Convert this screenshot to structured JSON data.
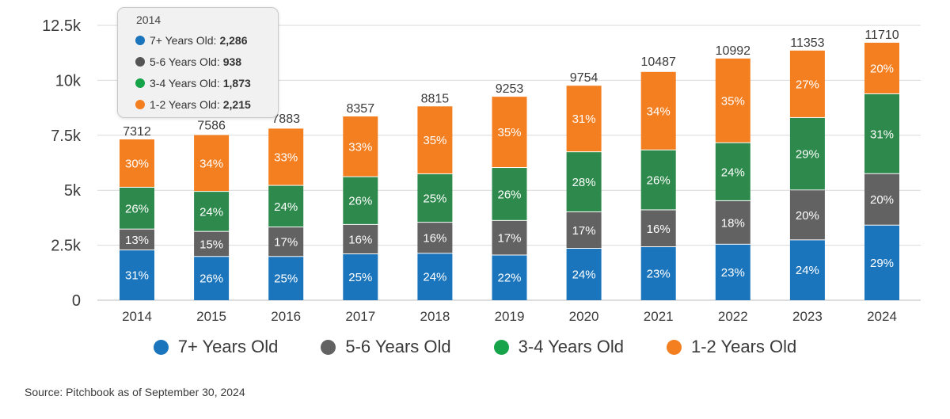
{
  "chart_data": {
    "type": "bar",
    "stacked": true,
    "categories": [
      "2014",
      "2015",
      "2016",
      "2017",
      "2018",
      "2019",
      "2020",
      "2021",
      "2022",
      "2023",
      "2024"
    ],
    "totals": [
      7312,
      7586,
      7883,
      8357,
      8815,
      9253,
      9754,
      10487,
      10992,
      11353,
      11710
    ],
    "series": [
      {
        "name": "7+ Years Old",
        "color": "#1b75bc",
        "percent_labels": [
          "31%",
          "26%",
          "25%",
          "25%",
          "24%",
          "22%",
          "24%",
          "23%",
          "23%",
          "24%",
          "29%"
        ]
      },
      {
        "name": "5-6 Years Old",
        "color": "#626262",
        "percent_labels": [
          "13%",
          "15%",
          "17%",
          "16%",
          "16%",
          "17%",
          "17%",
          "16%",
          "18%",
          "20%",
          "20%"
        ]
      },
      {
        "name": "3-4 Years Old",
        "color": "#2e8a4c",
        "percent_labels": [
          "26%",
          "24%",
          "24%",
          "26%",
          "25%",
          "26%",
          "28%",
          "26%",
          "24%",
          "29%",
          "31%"
        ]
      },
      {
        "name": "1-2 Years Old",
        "color": "#f37f21",
        "percent_labels": [
          "30%",
          "34%",
          "33%",
          "33%",
          "35%",
          "35%",
          "31%",
          "34%",
          "35%",
          "27%",
          "20%"
        ]
      }
    ],
    "ylim": [
      0,
      12500
    ],
    "yticks": [
      0,
      2500,
      5000,
      7500,
      10000,
      12500
    ],
    "ytick_labels": [
      "0",
      "2.5k",
      "5k",
      "7.5k",
      "10k",
      "12.5k"
    ],
    "grid": true,
    "legend_position": "bottom",
    "xlabel": "",
    "ylabel": ""
  },
  "legend_colors": [
    "#1b75bc",
    "#626262",
    "#16a34a",
    "#f37f21"
  ],
  "tooltip": {
    "title": "2014",
    "rows": [
      {
        "label": "7+ Years Old:",
        "value": "2,286",
        "color": "#1b75bc"
      },
      {
        "label": "5-6 Years Old:",
        "value": "938",
        "color": "#555555"
      },
      {
        "label": "3-4 Years Old:",
        "value": "1,873",
        "color": "#16a34a"
      },
      {
        "label": "1-2 Years Old:",
        "value": "2,215",
        "color": "#f37f21"
      }
    ]
  },
  "source_note": "Source: Pitchbook as of September 30, 2024"
}
